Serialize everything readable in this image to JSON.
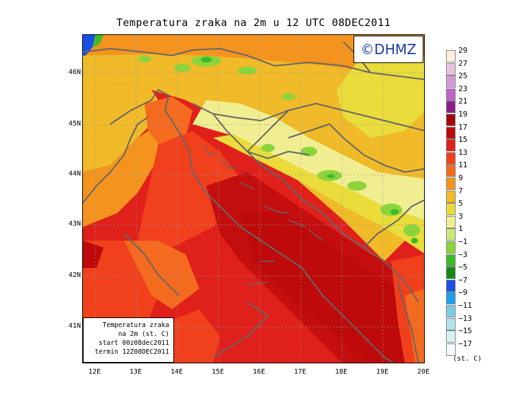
{
  "title": "Temperatura zraka na 2m u 12 UTC 08DEC2011",
  "logo": "©DHMZ",
  "info_box": [
    "Temperatura zraka",
    "na 2m (st. C)",
    "start 00z08dec2011",
    "termin 12Z08DEC2011"
  ],
  "lat_labels": [
    "46N",
    "45N",
    "44N",
    "43N",
    "42N",
    "41N"
  ],
  "lon_labels": [
    "12E",
    "13E",
    "14E",
    "15E",
    "16E",
    "17E",
    "18E",
    "19E",
    "20E"
  ],
  "legend": {
    "units": "(st. C)",
    "labels": [
      "29",
      "27",
      "25",
      "23",
      "21",
      "19",
      "17",
      "15",
      "13",
      "11",
      "9",
      "7",
      "5",
      "3",
      "1",
      "−1",
      "−3",
      "−5",
      "−7",
      "−9",
      "−11",
      "−13",
      "−15",
      "−17"
    ],
    "colors": [
      "#fbeee0",
      "#e3c4de",
      "#d79ad8",
      "#c064cc",
      "#8a1f8a",
      "#a00808",
      "#be0a0a",
      "#e0201a",
      "#f0401c",
      "#f46a1e",
      "#f4941e",
      "#f0ba28",
      "#eadc3a",
      "#f1ee92",
      "#c8e878",
      "#8cd43c",
      "#3cbb28",
      "#138a14",
      "#1a4fe6",
      "#1aa0e6",
      "#7ccce6",
      "#b4e2ea",
      "#d8f2f2",
      "#f2fcfc"
    ]
  },
  "colors": {
    "sea_warm": "#c40e0e",
    "coast_line": "#666666",
    "logo_text": "#1a3aa8"
  }
}
